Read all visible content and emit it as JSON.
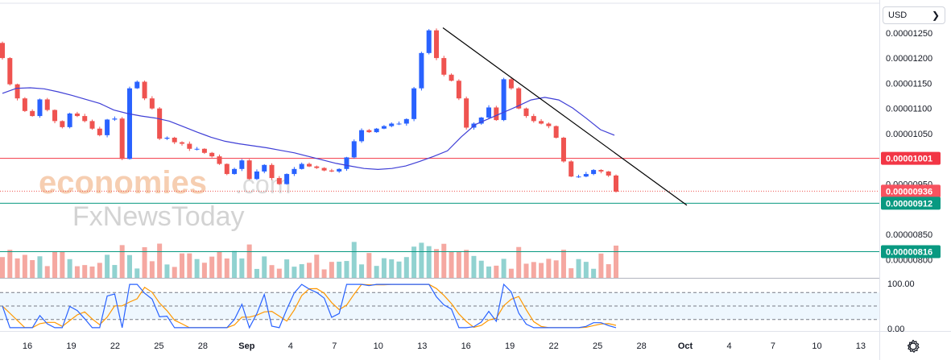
{
  "currency": {
    "selected": "USD"
  },
  "watermark": {
    "brand": "economies",
    "brand_suffix": ".com",
    "secondary": "FxNewsToday"
  },
  "price_axis": {
    "ticks": [
      "0.00001250",
      "0.00001200",
      "0.00001150",
      "0.00001100",
      "0.00001050",
      "0.00000950",
      "0.00000850",
      "0.00000800"
    ],
    "tick_values": [
      1.25e-05,
      1.2e-05,
      1.15e-05,
      1.1e-05,
      1.05e-05,
      9.5e-06,
      8.5e-06,
      8e-06
    ],
    "tags": [
      {
        "label": "0.00001001",
        "value": 1.001e-05,
        "color": "#f23645"
      },
      {
        "label": "0.00000936",
        "value": 9.36e-06,
        "color": "#f7525f"
      },
      {
        "label": "0.00000912",
        "value": 9.12e-06,
        "color": "#089981"
      },
      {
        "label": "0.00000816",
        "value": 8.16e-06,
        "color": "#089981"
      }
    ]
  },
  "oscillator_axis": {
    "ticks": [
      "100.00",
      "0.00"
    ],
    "tick_values": [
      100,
      0
    ],
    "band_levels": [
      80,
      50,
      20
    ]
  },
  "time_axis": {
    "labels": [
      "16",
      "19",
      "22",
      "25",
      "28",
      "Sep",
      "4",
      "7",
      "10",
      "13",
      "16",
      "19",
      "22",
      "25",
      "28",
      "Oct",
      "4",
      "7",
      "10",
      "13"
    ],
    "bold": [
      "Sep",
      "Oct"
    ]
  },
  "colors": {
    "up": "#2962ff",
    "down": "#ef5350",
    "ma": "#3f3fd6",
    "trendline": "#000000",
    "resistance": "#f23645",
    "support": "#089981",
    "vol_up": "#6cc3c0",
    "vol_down": "#f28b82",
    "stoch_k": "#2962ff",
    "stoch_d": "#ff9800"
  },
  "chart_data": {
    "type": "candlestick",
    "unit": "USD",
    "x_axis": "date",
    "x_labels": [
      "16",
      "19",
      "22",
      "25",
      "28",
      "Sep",
      "4",
      "7",
      "10",
      "13",
      "16",
      "19",
      "22",
      "25",
      "28",
      "Oct",
      "4",
      "7",
      "10",
      "13"
    ],
    "close_series": [
      1.2e-05,
      1.148e-05,
      1.12e-05,
      1.095e-05,
      1.085e-05,
      1.118e-05,
      1.097e-05,
      1.075e-05,
      1.063e-05,
      1.09e-05,
      1.085e-05,
      1.075e-05,
      1.06e-05,
      1.047e-05,
      1.078e-05,
      1.08e-05,
      1e-05,
      1.14e-05,
      1.153e-05,
      1.12e-05,
      1.1e-05,
      1.04e-05,
      1.042e-05,
      1.033e-05,
      1.03e-05,
      1.02e-05,
      1.02e-05,
      1.012e-05,
      1.005e-05,
      9.9e-06,
      9.7e-06,
      9.8e-06,
      9.97e-06,
      9.6e-06,
      9.75e-06,
      9.88e-06,
      9.62e-06,
      9.5e-06,
      9.7e-06,
      9.8e-06,
      9.9e-06,
      9.85e-06,
      9.82e-06,
      9.77e-06,
      9.75e-06,
      9.8e-06,
      1.003e-05,
      1.035e-05,
      1.057e-05,
      1.053e-05,
      1.06e-05,
      1.065e-05,
      1.07e-05,
      1.07e-05,
      1.079e-05,
      1.14e-05,
      1.21e-05,
      1.255e-05,
      1.2e-05,
      1.167e-05,
      1.155e-05,
      1.12e-05,
      1.062e-05,
      1.07e-05,
      1.082e-05,
      1.102e-05,
      1.077e-05,
      1.158e-05,
      1.14e-05,
      1.1e-05,
      1.085e-05,
      1.075e-05,
      1.07e-05,
      1.065e-05,
      1.042e-05,
      9.95e-06,
      9.65e-06,
      9.65e-06,
      9.7e-06,
      9.78e-06,
      9.75e-06,
      9.67e-06,
      9.35e-06
    ],
    "moving_average": [
      1.13e-05,
      1.14e-05,
      1.141e-05,
      1.139e-05,
      1.133e-05,
      1.126e-05,
      1.118e-05,
      1.11e-05,
      1.097e-05,
      1.09e-05,
      1.085e-05,
      1.081e-05,
      1.075e-05,
      1.064e-05,
      1.053e-05,
      1.043e-05,
      1.035e-05,
      1.03e-05,
      1.026e-05,
      1.022e-05,
      1.017e-05,
      1.012e-05,
      1.005e-05,
      9.98e-06,
      9.91e-06,
      9.86e-06,
      9.81e-06,
      9.79e-06,
      9.81e-06,
      9.86e-06,
      9.95e-06,
      1.005e-05,
      1.016e-05,
      1.044e-05,
      1.068e-05,
      1.08e-05,
      1.092e-05,
      1.104e-05,
      1.117e-05,
      1.122e-05,
      1.117e-05,
      1.101e-05,
      1.08e-05,
      1.058e-05,
      1.047e-05
    ],
    "horizontal_levels": [
      {
        "label": "0.00001001",
        "value": 1.001e-05
      },
      {
        "label": "0.00000936",
        "value": 9.36e-06,
        "style": "dotted"
      },
      {
        "label": "0.00000912",
        "value": 9.12e-06
      },
      {
        "label": "0.00000816",
        "value": 8.16e-06
      }
    ],
    "trendline": {
      "from": {
        "x": "13",
        "y": 1.26e-05
      },
      "to": {
        "x": "Oct",
        "y": 9.08e-06
      }
    },
    "oscillator": {
      "type": "stochastic",
      "ylim": [
        0,
        100
      ],
      "levels": [
        80,
        50,
        20
      ]
    }
  }
}
